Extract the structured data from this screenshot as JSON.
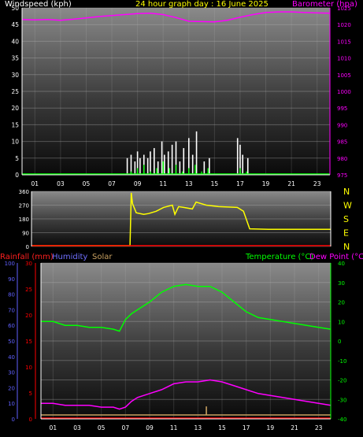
{
  "header": {
    "left_label": "Windspeed (kph)",
    "title": "24 hour graph day : 16 June 2025",
    "right_label": "Barometer (hpa)"
  },
  "lower_header": {
    "rainfall_label": "Rainfall (mm)",
    "humidity_label": "Humidity",
    "solar_label": "Solar",
    "temperature_label": "Temperature (°C)",
    "dewpoint_label": "Dew Point (°C)"
  },
  "colors": {
    "wind": "#ffffff",
    "gust_avg": "#00ff00",
    "barometer": "#ff00ff",
    "direction": "#ffff00",
    "rain": "#ff0000",
    "humidity": "#6060ff",
    "solar": "#c8a060",
    "temperature": "#00ff00",
    "dewpoint": "#ff00ff"
  },
  "chart_data": [
    {
      "type": "line",
      "name": "wind-barometer",
      "x_ticks": [
        "01",
        "03",
        "05",
        "07",
        "09",
        "11",
        "13",
        "15",
        "17",
        "19",
        "21",
        "23"
      ],
      "x_range": [
        0,
        24
      ],
      "left_axis": {
        "ticks": [
          0,
          5,
          10,
          15,
          20,
          25,
          30,
          35,
          40,
          45,
          50
        ],
        "range": [
          0,
          50
        ]
      },
      "right_axis": {
        "ticks": [
          975,
          980,
          985,
          990,
          995,
          1000,
          1005,
          1010,
          1015,
          1020,
          1025
        ],
        "range": [
          975,
          1025
        ]
      },
      "barometer": {
        "x": [
          0,
          1,
          2,
          3,
          4,
          5,
          6,
          7,
          8,
          9,
          10,
          11,
          12,
          13,
          14,
          15,
          16,
          17,
          18,
          19,
          20,
          21,
          22,
          23,
          24
        ],
        "y": [
          1021.5,
          1021.4,
          1021.5,
          1021.3,
          1021.6,
          1022.0,
          1022.4,
          1022.7,
          1023.0,
          1023.3,
          1023.4,
          1023.0,
          1022.1,
          1021.0,
          1020.9,
          1020.8,
          1021.3,
          1022.2,
          1023.0,
          1023.6,
          1023.8,
          1023.8,
          1023.6,
          1023.5,
          1023.4
        ]
      },
      "wind_peaks": {
        "x": [
          8.2,
          8.5,
          8.8,
          9.0,
          9.2,
          9.5,
          9.8,
          10.0,
          10.3,
          10.6,
          10.9,
          11.1,
          11.4,
          11.7,
          12.0,
          12.3,
          12.6,
          13.0,
          13.3,
          13.6,
          14.2,
          14.6,
          16.8,
          17.0,
          17.2,
          17.6
        ],
        "y": [
          5,
          6,
          4,
          7,
          5,
          6,
          5,
          7,
          8,
          4,
          10,
          6,
          7,
          9,
          10,
          4,
          8,
          11,
          6,
          13,
          4,
          5,
          11,
          9,
          6,
          5
        ]
      },
      "wind_avg": {
        "x": [
          8.5,
          9.0,
          9.5,
          10.0,
          10.5,
          11.0,
          11.5,
          12.0,
          12.5,
          13.0,
          13.5,
          14.0,
          14.5,
          17.0,
          17.5
        ],
        "y": [
          1,
          2,
          3,
          1,
          2,
          4,
          2,
          3,
          1,
          2,
          3,
          1,
          2,
          2,
          1
        ]
      }
    },
    {
      "type": "line",
      "name": "wind-direction",
      "x_range": [
        0,
        24
      ],
      "left_axis": {
        "ticks": [
          0,
          90,
          180,
          270,
          360
        ],
        "range": [
          0,
          360
        ]
      },
      "right_labels": [
        "N",
        "W",
        "S",
        "E",
        "N"
      ],
      "direction": {
        "x": [
          0,
          7.9,
          8.0,
          8.1,
          8.4,
          9.0,
          9.4,
          10.0,
          10.6,
          11.3,
          11.5,
          11.8,
          12.2,
          12.9,
          13.2,
          14.0,
          15.0,
          16.5,
          17.0,
          17.5,
          19.0,
          24
        ],
        "y": [
          5,
          5,
          350,
          280,
          220,
          210,
          215,
          230,
          255,
          270,
          210,
          260,
          255,
          245,
          290,
          270,
          260,
          255,
          230,
          115,
          112,
          112
        ]
      }
    },
    {
      "type": "line",
      "name": "temperature-humidity",
      "x_range": [
        0,
        24
      ],
      "left_axis": {
        "ticks": [
          0,
          10,
          20,
          30,
          40,
          50,
          60,
          70,
          80,
          90,
          100
        ],
        "range": [
          0,
          100
        ]
      },
      "rain_axis": {
        "ticks": [
          0,
          5,
          10,
          15,
          20,
          25,
          30
        ],
        "range": [
          0,
          30
        ]
      },
      "right_axis": {
        "ticks": [
          -40,
          -30,
          -20,
          -10,
          0,
          10,
          20,
          30,
          40
        ],
        "range": [
          -40,
          40
        ]
      },
      "temperature": {
        "x": [
          0,
          1,
          2,
          3,
          4,
          5,
          6,
          6.5,
          7,
          7.5,
          8,
          9,
          10,
          11,
          12,
          13,
          14,
          15,
          16,
          17,
          18,
          19,
          20,
          21,
          22,
          23,
          24
        ],
        "y": [
          10,
          10,
          8,
          8,
          7,
          7,
          6,
          5,
          11,
          14,
          16,
          20,
          25,
          28,
          29,
          28,
          28,
          25,
          20,
          15,
          12,
          11,
          10,
          9,
          8,
          7,
          6
        ]
      },
      "dewpoint": {
        "x": [
          0,
          1,
          2,
          3,
          4,
          5,
          6,
          6.5,
          7,
          7.5,
          8,
          9,
          10,
          11,
          12,
          13,
          14,
          15,
          16,
          17,
          18,
          19,
          20,
          21,
          22,
          23,
          24
        ],
        "y": [
          -32,
          -32,
          -33,
          -33,
          -33,
          -34,
          -34,
          -35,
          -34,
          -31,
          -29,
          -27,
          -25,
          -22,
          -21,
          -21,
          -20,
          -21,
          -23,
          -25,
          -27,
          -28,
          -29,
          -30,
          -31,
          -32,
          -33
        ]
      },
      "solar_spike": {
        "x": 13.7,
        "y": 8
      }
    }
  ]
}
